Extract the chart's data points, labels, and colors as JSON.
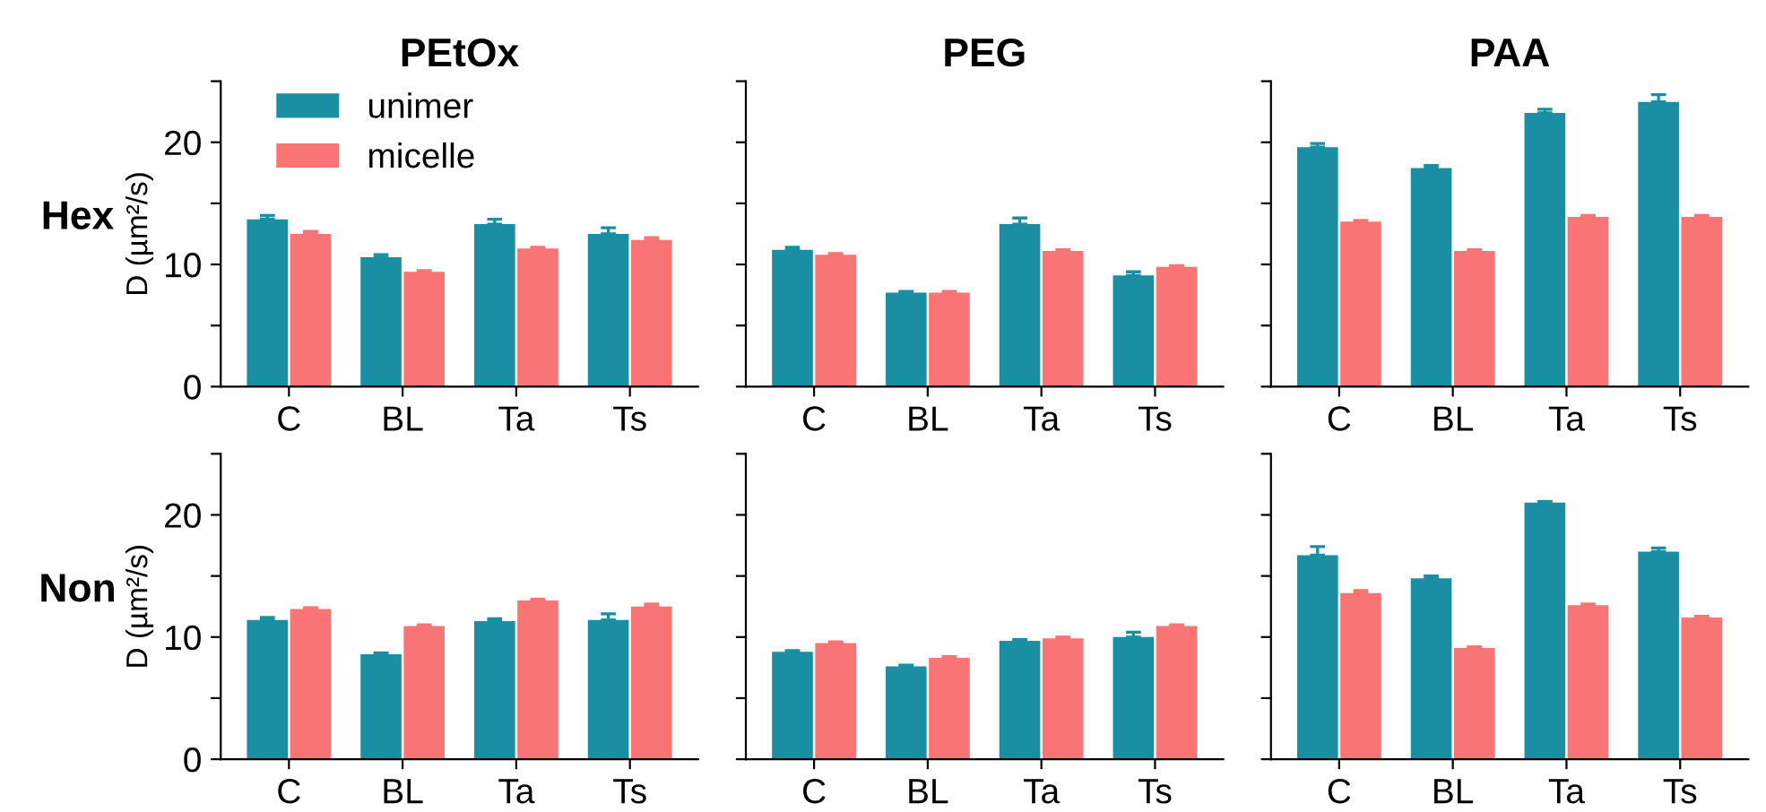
{
  "chart_data": [
    {
      "type": "bar",
      "title": "PEtOx",
      "ylabel": "D (µm²/s)",
      "annotations": [
        "Hex"
      ],
      "categories": [
        "C",
        "BL",
        "Ta",
        "Ts"
      ],
      "ylim": [
        0,
        25
      ],
      "yticks": [
        0,
        {
          "value": 5,
          "label": null
        },
        10,
        {
          "value": 15,
          "label": null
        },
        20,
        {
          "value": 25,
          "label": null
        }
      ],
      "legend": "top left",
      "grid": false,
      "series": [
        {
          "name": "unimer",
          "color": "#1a8fa3",
          "values": [
            13.7,
            10.6,
            13.3,
            12.5
          ],
          "errors": [
            0.3,
            0.2,
            0.4,
            0.5
          ]
        },
        {
          "name": "micelle",
          "color": "#f97575",
          "values": [
            12.5,
            9.4,
            11.3,
            12.0
          ],
          "errors": [
            0.2,
            0.1,
            0.1,
            0.2
          ]
        }
      ]
    },
    {
      "type": "bar",
      "title": "PEG",
      "categories": [
        "C",
        "BL",
        "Ta",
        "Ts"
      ],
      "ylim": [
        0,
        25
      ],
      "yticks": [
        0,
        5,
        10,
        15,
        20,
        25
      ],
      "tick_labels": "x",
      "grid": false,
      "series": [
        {
          "color": "#1a8fa3",
          "values": [
            11.2,
            7.7,
            13.3,
            9.1
          ],
          "errors": [
            0.2,
            0.1,
            0.5,
            0.3
          ]
        },
        {
          "color": "#f97575",
          "values": [
            10.8,
            7.7,
            11.1,
            9.8
          ],
          "errors": [
            0.1,
            0.1,
            0.1,
            0.1
          ]
        }
      ]
    },
    {
      "type": "bar",
      "title": "PAA",
      "categories": [
        "C",
        "BL",
        "Ta",
        "Ts"
      ],
      "ylim": [
        0,
        25
      ],
      "yticks": [
        0,
        5,
        10,
        15,
        20,
        25
      ],
      "tick_labels": "x",
      "grid": false,
      "series": [
        {
          "color": "#1a8fa3",
          "values": [
            19.6,
            17.9,
            22.4,
            23.3
          ],
          "errors": [
            0.3,
            0.2,
            0.3,
            0.6
          ]
        },
        {
          "color": "#f97575",
          "values": [
            13.5,
            11.1,
            13.9,
            13.9
          ],
          "errors": [
            0.1,
            0.1,
            0.1,
            0.1
          ]
        }
      ]
    },
    {
      "type": "bar",
      "ylabel": "D (µm²/s)",
      "annotations": [
        "Non"
      ],
      "categories": [
        "C",
        "BL",
        "Ta",
        "Ts"
      ],
      "ylim": [
        0,
        25
      ],
      "yticks": [
        0,
        {
          "value": 5,
          "label": null
        },
        10,
        {
          "value": 15,
          "label": null
        },
        20,
        {
          "value": 25,
          "label": null
        }
      ],
      "grid": false,
      "series": [
        {
          "color": "#1a8fa3",
          "values": [
            11.4,
            8.6,
            11.3,
            11.4
          ],
          "errors": [
            0.2,
            0.1,
            0.2,
            0.5
          ]
        },
        {
          "color": "#f97575",
          "values": [
            12.3,
            10.9,
            13.0,
            12.5
          ],
          "errors": [
            0.1,
            0.1,
            0.1,
            0.2
          ]
        }
      ]
    },
    {
      "type": "bar",
      "categories": [
        "C",
        "BL",
        "Ta",
        "Ts"
      ],
      "ylim": [
        0,
        25
      ],
      "yticks": [
        0,
        5,
        10,
        15,
        20,
        25
      ],
      "tick_labels": "x",
      "grid": false,
      "series": [
        {
          "color": "#1a8fa3",
          "values": [
            8.8,
            7.6,
            9.7,
            10.0
          ],
          "errors": [
            0.1,
            0.1,
            0.1,
            0.4
          ]
        },
        {
          "color": "#f97575",
          "values": [
            9.5,
            8.3,
            9.9,
            10.9
          ],
          "errors": [
            0.1,
            0.1,
            0.1,
            0.1
          ]
        }
      ]
    },
    {
      "type": "bar",
      "categories": [
        "C",
        "BL",
        "Ta",
        "Ts"
      ],
      "ylim": [
        0,
        25
      ],
      "yticks": [
        0,
        5,
        10,
        15,
        20,
        25
      ],
      "tick_labels": "x",
      "grid": false,
      "series": [
        {
          "color": "#1a8fa3",
          "values": [
            16.7,
            14.8,
            21.0,
            17.0
          ],
          "errors": [
            0.7,
            0.2,
            0.1,
            0.3
          ]
        },
        {
          "color": "#f97575",
          "values": [
            13.6,
            9.1,
            12.6,
            11.6
          ],
          "errors": [
            0.2,
            0.1,
            0.1,
            0.1
          ]
        }
      ]
    }
  ]
}
